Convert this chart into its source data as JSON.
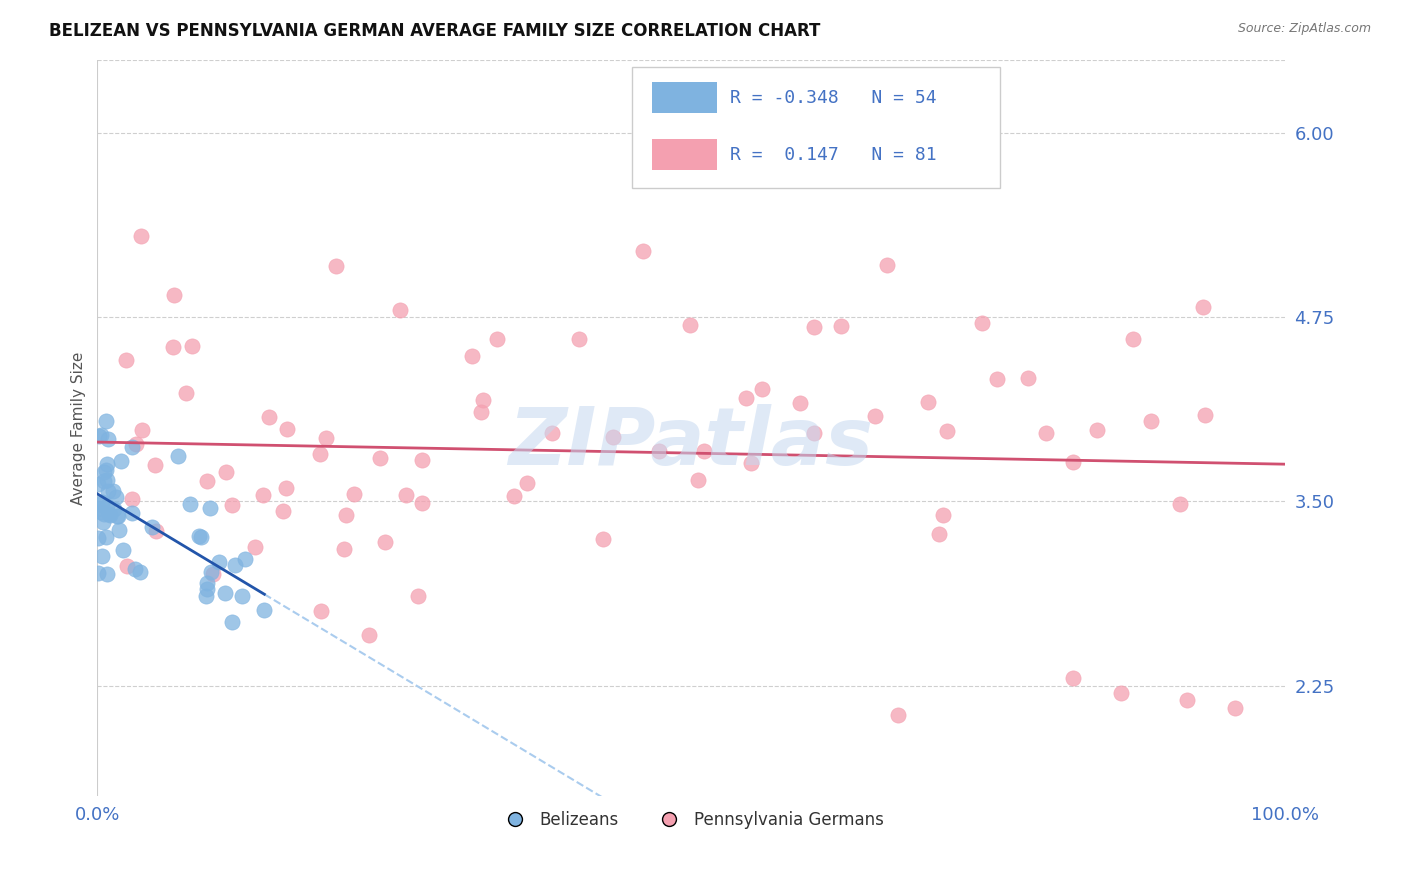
{
  "title": "BELIZEAN VS PENNSYLVANIA GERMAN AVERAGE FAMILY SIZE CORRELATION CHART",
  "source_text": "Source: ZipAtlas.com",
  "ylabel": "Average Family Size",
  "xlim": [
    0.0,
    100.0
  ],
  "ylim": [
    1.5,
    6.5
  ],
  "yticks": [
    2.25,
    3.5,
    4.75,
    6.0
  ],
  "xtick_labels": [
    "0.0%",
    "100.0%"
  ],
  "title_fontsize": 12,
  "ylabel_fontsize": 11,
  "axis_label_color": "#4472C4",
  "background_color": "#ffffff",
  "grid_color": "#bbbbbb",
  "belizean_color": "#7fb3e0",
  "penn_german_color": "#f4a0b0",
  "belizean_line_color": "#2255aa",
  "penn_german_line_color": "#d05070",
  "belizean_R": -0.348,
  "belizean_N": 54,
  "penn_german_R": 0.147,
  "penn_german_N": 81,
  "watermark": "ZIPatlas",
  "legend_color": "#4472C4",
  "dashed_line_color": "#aaccee"
}
